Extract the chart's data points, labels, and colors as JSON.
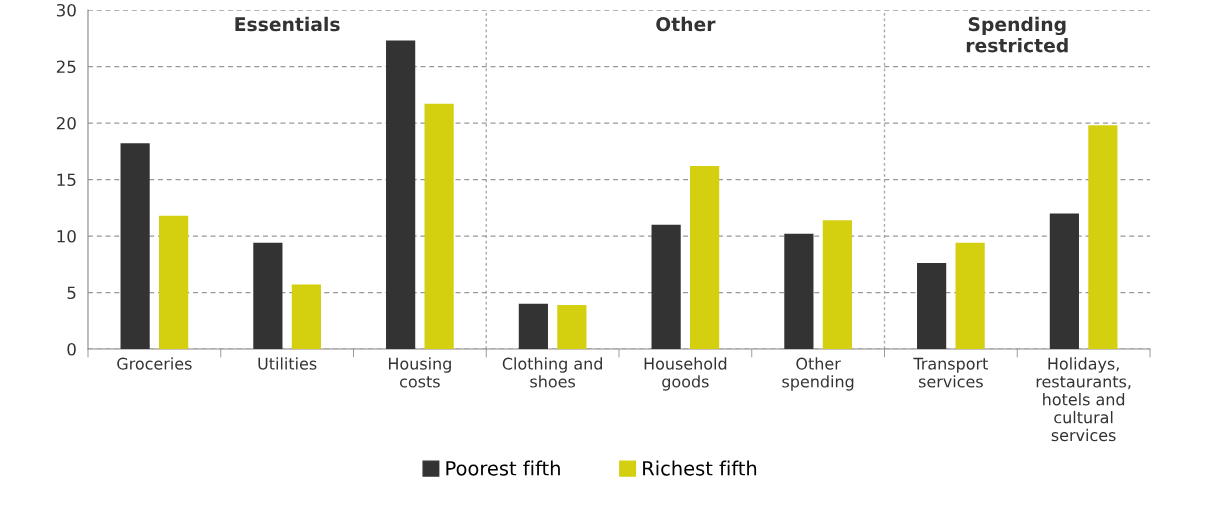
{
  "chart_data": {
    "type": "bar",
    "categories": [
      "Groceries",
      "Utilities",
      "Housing\ncosts",
      "Clothing and\nshoes",
      "Household\ngoods",
      "Other\nspending",
      "Transport\nservices",
      "Holidays,\nrestaurants,\nhotels and\ncultural\nservices"
    ],
    "series": [
      {
        "name": "Poorest fifth",
        "color": "#333333",
        "values": [
          18.2,
          9.4,
          27.3,
          4.0,
          11.0,
          10.2,
          7.6,
          12.0
        ]
      },
      {
        "name": "Richest fifth",
        "color": "#d4cf0f",
        "values": [
          11.8,
          5.7,
          21.7,
          3.9,
          16.2,
          11.4,
          9.4,
          19.8
        ]
      }
    ],
    "ylim": [
      0,
      30
    ],
    "yticks": [
      0,
      5,
      10,
      15,
      20,
      25,
      30
    ],
    "grid": "y",
    "legend": "bottom",
    "annotations": [
      "Essentials",
      "Other",
      "Spending\nrestricted"
    ]
  }
}
